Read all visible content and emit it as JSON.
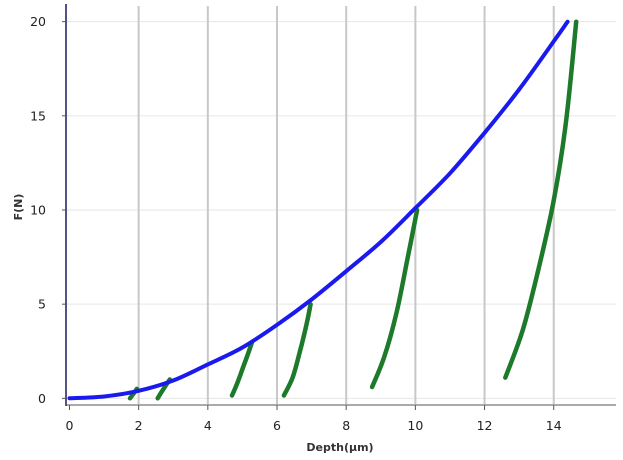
{
  "chart_data": {
    "type": "line",
    "title": "",
    "xlabel": "Depth(µm)",
    "ylabel": "F(N)",
    "xlim": [
      -0.1,
      15.8
    ],
    "ylim": [
      -0.3,
      20.3
    ],
    "x_ticks": [
      0,
      2,
      4,
      6,
      8,
      10,
      12,
      14
    ],
    "y_ticks": [
      0,
      5,
      10,
      15,
      20
    ],
    "x_tick_labels": [
      "0",
      "2",
      "4",
      "6",
      "8",
      "10",
      "12",
      "14"
    ],
    "y_tick_labels": [
      "0",
      "5",
      "10",
      "15",
      "20"
    ],
    "grid": {
      "vertical": true,
      "horizontal": true
    },
    "colors": {
      "loading": "#1a1aee",
      "unloading": "#1d7a2a",
      "vgrid": "#c8c8c8",
      "hgrid": "#e6e6e6",
      "axis": "#1a1a5e"
    },
    "series": [
      {
        "role": "loading",
        "x": [
          0,
          1,
          2,
          3,
          4,
          5,
          6,
          7,
          8,
          9,
          10,
          11,
          12,
          13,
          14,
          14.4
        ],
        "y": [
          0,
          0.1,
          0.4,
          0.95,
          1.8,
          2.7,
          3.9,
          5.25,
          6.75,
          8.3,
          10.1,
          11.95,
          14.1,
          16.4,
          18.95,
          20.0
        ]
      },
      {
        "role": "unloading",
        "x": [
          1.75,
          1.85,
          1.95
        ],
        "y": [
          0,
          0.25,
          0.5
        ]
      },
      {
        "role": "unloading",
        "x": [
          2.55,
          2.7,
          2.9
        ],
        "y": [
          0,
          0.45,
          1.0
        ]
      },
      {
        "role": "unloading",
        "x": [
          4.7,
          4.85,
          5.0,
          5.15,
          5.28
        ],
        "y": [
          0.15,
          0.8,
          1.55,
          2.3,
          3.0
        ]
      },
      {
        "role": "unloading",
        "x": [
          6.2,
          6.45,
          6.65,
          6.85,
          6.97
        ],
        "y": [
          0.15,
          1.1,
          2.4,
          3.9,
          5.0
        ]
      },
      {
        "role": "unloading",
        "x": [
          8.75,
          9.1,
          9.45,
          9.75,
          10.05
        ],
        "y": [
          0.6,
          2.2,
          4.5,
          7.2,
          10.0
        ]
      },
      {
        "role": "unloading",
        "x": [
          12.6,
          13.1,
          13.55,
          14.0,
          14.35,
          14.65
        ],
        "y": [
          1.1,
          3.6,
          6.8,
          10.5,
          14.6,
          20.0
        ]
      }
    ]
  }
}
